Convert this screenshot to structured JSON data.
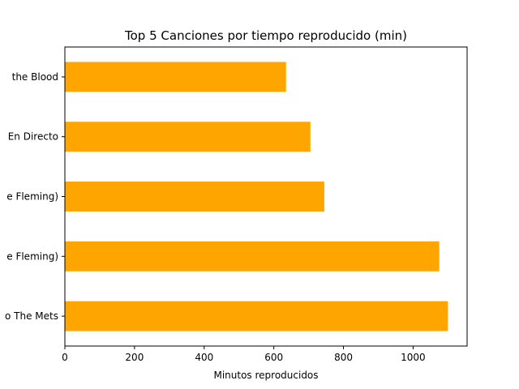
{
  "chart_data": {
    "type": "bar",
    "orientation": "horizontal",
    "title": "Top 5 Canciones por tiempo reproducido (min)",
    "xlabel": "Minutos reproducidos",
    "ylabel": "",
    "categories": [
      "o The Mets",
      "e Fleming)",
      "e Fleming)",
      "En Directo",
      "the Blood"
    ],
    "values": [
      1100,
      1075,
      745,
      705,
      635
    ],
    "xlim": [
      0,
      1155
    ],
    "xticks": [
      0,
      200,
      400,
      600,
      800,
      1000
    ],
    "bar_color": "#FFA500",
    "grid": false,
    "legend": "none"
  }
}
